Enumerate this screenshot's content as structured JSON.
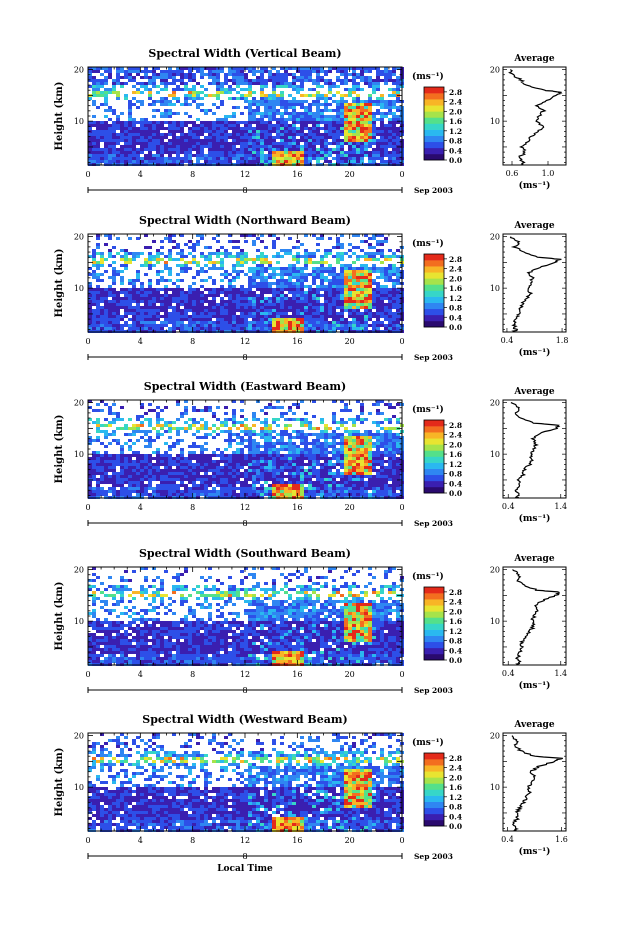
{
  "chart_data": [
    {
      "type": "heatmap",
      "title": "Spectral Width (Vertical Beam)",
      "ylabel": "Height (km)",
      "xlabel": "",
      "x_ticks": [
        "0",
        "4",
        "8",
        "12",
        "16",
        "20",
        "0"
      ],
      "y_ticks": [
        "10",
        "20"
      ],
      "day_label": "8",
      "date_label": "Sep 2003",
      "colorbar": {
        "unit": "(ms⁻¹)",
        "ticks": [
          "0.0",
          "0.4",
          "0.8",
          "1.2",
          "1.6",
          "2.0",
          "2.4",
          "2.8"
        ],
        "range": [
          0.0,
          3.0
        ]
      },
      "average": {
        "title": "Average",
        "xlabel": "(ms⁻¹)",
        "x_ticks": [
          "0.6",
          "1.0"
        ],
        "xlim": [
          0.5,
          1.2
        ],
        "profile": [
          [
            1.5,
            0.7
          ],
          [
            2,
            0.72
          ],
          [
            3,
            0.68
          ],
          [
            4,
            0.75
          ],
          [
            5,
            0.7
          ],
          [
            6,
            0.78
          ],
          [
            7,
            0.8
          ],
          [
            8,
            0.9
          ],
          [
            9,
            0.95
          ],
          [
            10,
            0.85
          ],
          [
            11,
            0.9
          ],
          [
            12,
            0.95
          ],
          [
            13,
            0.88
          ],
          [
            14,
            0.98
          ],
          [
            15,
            1.1
          ],
          [
            15.6,
            1.15
          ],
          [
            16,
            0.95
          ],
          [
            17,
            0.75
          ],
          [
            18,
            0.7
          ],
          [
            19,
            0.6
          ],
          [
            20,
            0.58
          ]
        ]
      },
      "y_range": [
        1.5,
        20.5
      ]
    },
    {
      "type": "heatmap",
      "title": "Spectral Width (Northward Beam)",
      "ylabel": "Height (km)",
      "xlabel": "",
      "x_ticks": [
        "0",
        "4",
        "8",
        "12",
        "16",
        "20",
        "0"
      ],
      "y_ticks": [
        "10",
        "20"
      ],
      "day_label": "8",
      "date_label": "Sep 2003",
      "colorbar": {
        "unit": "(ms⁻¹)",
        "ticks": [
          "0.0",
          "0.4",
          "0.8",
          "1.2",
          "1.6",
          "2.0",
          "2.4",
          "2.8"
        ],
        "range": [
          0.0,
          3.0
        ]
      },
      "average": {
        "title": "Average",
        "xlabel": "(ms⁻¹)",
        "x_ticks": [
          "0.4",
          "1.8"
        ],
        "xlim": [
          0.3,
          1.9
        ],
        "profile": [
          [
            1.5,
            0.6
          ],
          [
            2,
            0.62
          ],
          [
            3,
            0.58
          ],
          [
            4,
            0.65
          ],
          [
            5,
            0.7
          ],
          [
            6,
            0.72
          ],
          [
            7,
            0.8
          ],
          [
            8,
            0.9
          ],
          [
            9,
            1.0
          ],
          [
            10,
            0.95
          ],
          [
            11,
            1.0
          ],
          [
            12,
            1.05
          ],
          [
            13,
            0.95
          ],
          [
            14,
            1.2
          ],
          [
            15,
            1.6
          ],
          [
            15.6,
            1.75
          ],
          [
            16,
            1.2
          ],
          [
            17,
            0.8
          ],
          [
            18,
            0.6
          ],
          [
            19,
            0.7
          ],
          [
            20,
            0.5
          ]
        ]
      },
      "y_range": [
        1.5,
        20.5
      ]
    },
    {
      "type": "heatmap",
      "title": "Spectral Width (Eastward Beam)",
      "ylabel": "Height (km)",
      "xlabel": "",
      "x_ticks": [
        "0",
        "4",
        "8",
        "12",
        "16",
        "20",
        "0"
      ],
      "y_ticks": [
        "10",
        "20"
      ],
      "day_label": "8",
      "date_label": "Sep 2003",
      "colorbar": {
        "unit": "(ms⁻¹)",
        "ticks": [
          "0.0",
          "0.4",
          "0.8",
          "1.2",
          "1.6",
          "2.0",
          "2.4",
          "2.8"
        ],
        "range": [
          0.0,
          3.0
        ]
      },
      "average": {
        "title": "Average",
        "xlabel": "(ms⁻¹)",
        "x_ticks": [
          "0.4",
          "1.4"
        ],
        "xlim": [
          0.3,
          1.5
        ],
        "profile": [
          [
            1.5,
            0.55
          ],
          [
            2,
            0.58
          ],
          [
            3,
            0.56
          ],
          [
            4,
            0.62
          ],
          [
            5,
            0.6
          ],
          [
            6,
            0.68
          ],
          [
            7,
            0.72
          ],
          [
            8,
            0.8
          ],
          [
            9,
            0.85
          ],
          [
            10,
            0.82
          ],
          [
            11,
            0.9
          ],
          [
            12,
            0.92
          ],
          [
            13,
            0.88
          ],
          [
            14,
            1.0
          ],
          [
            15,
            1.3
          ],
          [
            15.6,
            1.38
          ],
          [
            16,
            0.9
          ],
          [
            17,
            0.65
          ],
          [
            18,
            0.55
          ],
          [
            19,
            0.6
          ],
          [
            20,
            0.45
          ]
        ]
      },
      "y_range": [
        1.5,
        20.5
      ]
    },
    {
      "type": "heatmap",
      "title": "Spectral Width (Southward Beam)",
      "ylabel": "Height (km)",
      "xlabel": "",
      "x_ticks": [
        "0",
        "4",
        "8",
        "12",
        "16",
        "20",
        "0"
      ],
      "y_ticks": [
        "10",
        "20"
      ],
      "day_label": "8",
      "date_label": "Sep 2003",
      "colorbar": {
        "unit": "(ms⁻¹)",
        "ticks": [
          "0.0",
          "0.4",
          "0.8",
          "1.2",
          "1.6",
          "2.0",
          "2.4",
          "2.8"
        ],
        "range": [
          0.0,
          3.0
        ]
      },
      "average": {
        "title": "Average",
        "xlabel": "(ms⁻¹)",
        "x_ticks": [
          "0.4",
          "1.4"
        ],
        "xlim": [
          0.3,
          1.5
        ],
        "profile": [
          [
            1.5,
            0.55
          ],
          [
            2,
            0.6
          ],
          [
            3,
            0.58
          ],
          [
            4,
            0.62
          ],
          [
            5,
            0.65
          ],
          [
            6,
            0.66
          ],
          [
            7,
            0.75
          ],
          [
            8,
            0.82
          ],
          [
            9,
            0.88
          ],
          [
            10,
            0.85
          ],
          [
            11,
            0.9
          ],
          [
            12,
            0.95
          ],
          [
            13,
            0.9
          ],
          [
            14,
            1.05
          ],
          [
            15,
            1.3
          ],
          [
            15.6,
            1.4
          ],
          [
            16,
            0.95
          ],
          [
            17,
            0.7
          ],
          [
            18,
            0.55
          ],
          [
            19,
            0.62
          ],
          [
            20,
            0.48
          ]
        ]
      },
      "y_range": [
        1.5,
        20.5
      ]
    },
    {
      "type": "heatmap",
      "title": "Spectral Width (Westward Beam)",
      "ylabel": "Height (km)",
      "xlabel": "Local Time",
      "x_ticks": [
        "0",
        "4",
        "8",
        "12",
        "16",
        "20",
        "0"
      ],
      "y_ticks": [
        "10",
        "20"
      ],
      "day_label": "8",
      "date_label": "Sep 2003",
      "colorbar": {
        "unit": "(ms⁻¹)",
        "ticks": [
          "0.0",
          "0.4",
          "0.8",
          "1.2",
          "1.6",
          "2.0",
          "2.4",
          "2.8"
        ],
        "range": [
          0.0,
          3.0
        ]
      },
      "average": {
        "title": "Average",
        "xlabel": "(ms⁻¹)",
        "x_ticks": [
          "0.4",
          "1.6"
        ],
        "xlim": [
          0.3,
          1.7
        ],
        "profile": [
          [
            1.5,
            0.55
          ],
          [
            2,
            0.58
          ],
          [
            3,
            0.55
          ],
          [
            4,
            0.62
          ],
          [
            5,
            0.6
          ],
          [
            6,
            0.68
          ],
          [
            7,
            0.75
          ],
          [
            8,
            0.82
          ],
          [
            9,
            0.9
          ],
          [
            10,
            0.85
          ],
          [
            11,
            0.95
          ],
          [
            12,
            1.0
          ],
          [
            13,
            0.92
          ],
          [
            14,
            1.1
          ],
          [
            15,
            1.45
          ],
          [
            15.6,
            1.6
          ],
          [
            16,
            1.0
          ],
          [
            17,
            0.7
          ],
          [
            18,
            0.55
          ],
          [
            19,
            0.62
          ],
          [
            20,
            0.5
          ]
        ]
      },
      "y_range": [
        1.5,
        20.5
      ]
    }
  ],
  "colors": {
    "scale": [
      "#2a0a6e",
      "#3a1fb0",
      "#2d4fe8",
      "#2f86f2",
      "#2ab8f0",
      "#36d6c8",
      "#54e08a",
      "#a6e34a",
      "#e8e431",
      "#f8b526",
      "#f36e1f",
      "#e42a1a"
    ]
  }
}
